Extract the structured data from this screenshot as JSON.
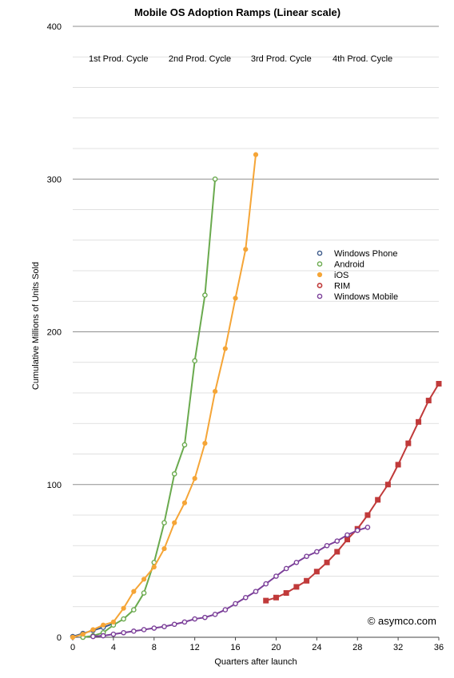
{
  "chart_data": {
    "type": "line",
    "title": "Mobile OS Adoption Ramps (Linear scale)",
    "xlabel": "Quarters after launch",
    "ylabel": "Cumulative Millions of Units Sold",
    "xlim": [
      0,
      36
    ],
    "ylim": [
      0,
      400
    ],
    "x_ticks": [
      0,
      4,
      8,
      12,
      16,
      20,
      24,
      28,
      32,
      36
    ],
    "y_ticks": [
      0,
      100,
      200,
      300,
      400
    ],
    "grid": true,
    "legend_position": "right",
    "cycle_labels": [
      "1st Prod. Cycle",
      "2nd Prod. Cycle",
      "3rd Prod. Cycle",
      "4th Prod. Cycle"
    ],
    "credit": "© asymco.com",
    "series": [
      {
        "name": "Windows Phone",
        "color": "#3d5a8a",
        "marker": "open-circle",
        "x": [
          0,
          1,
          2,
          3,
          4
        ],
        "y": [
          0.5,
          2.5,
          4.5,
          6.5,
          9
        ]
      },
      {
        "name": "Android",
        "color": "#6aaa4e",
        "marker": "open-circle",
        "x": [
          1,
          2,
          3,
          4,
          5,
          6,
          7,
          8,
          9,
          10,
          11,
          12,
          13,
          14
        ],
        "y": [
          0,
          1,
          3,
          8,
          12,
          18,
          29,
          49,
          75,
          107,
          126,
          181,
          224,
          300
        ]
      },
      {
        "name": "iOS",
        "color": "#f5a537",
        "marker": "filled-circle",
        "x": [
          0,
          1,
          2,
          3,
          4,
          5,
          6,
          7,
          8,
          9,
          10,
          11,
          12,
          13,
          14,
          15,
          16,
          17,
          18
        ],
        "y": [
          0,
          2,
          5,
          8,
          10,
          19,
          30,
          38,
          46,
          58,
          75,
          88,
          104,
          127,
          161,
          189,
          222,
          254,
          316
        ]
      },
      {
        "name": "RIM",
        "color": "#c03a3a",
        "marker": "filled-square",
        "x": [
          19,
          20,
          21,
          22,
          23,
          24,
          25,
          26,
          27,
          28,
          29,
          30,
          31,
          32,
          33,
          34,
          35,
          36
        ],
        "y": [
          24,
          26,
          29,
          33,
          37,
          43,
          49,
          56,
          64,
          71,
          80,
          90,
          100,
          113,
          127,
          141,
          155,
          166
        ]
      },
      {
        "name": "Windows Mobile",
        "color": "#7b3f99",
        "marker": "open-circle",
        "x": [
          2,
          3,
          4,
          5,
          6,
          7,
          8,
          9,
          10,
          11,
          12,
          13,
          14,
          15,
          16,
          17,
          18,
          19,
          20,
          21,
          22,
          23,
          24,
          25,
          26,
          27,
          28,
          29
        ],
        "y": [
          0.5,
          1,
          2,
          3,
          4,
          5,
          6,
          7,
          8.5,
          10,
          12,
          13,
          15,
          18,
          22,
          26,
          30,
          35,
          40,
          45,
          49,
          53,
          56,
          60,
          63,
          67,
          70,
          72
        ]
      }
    ]
  }
}
